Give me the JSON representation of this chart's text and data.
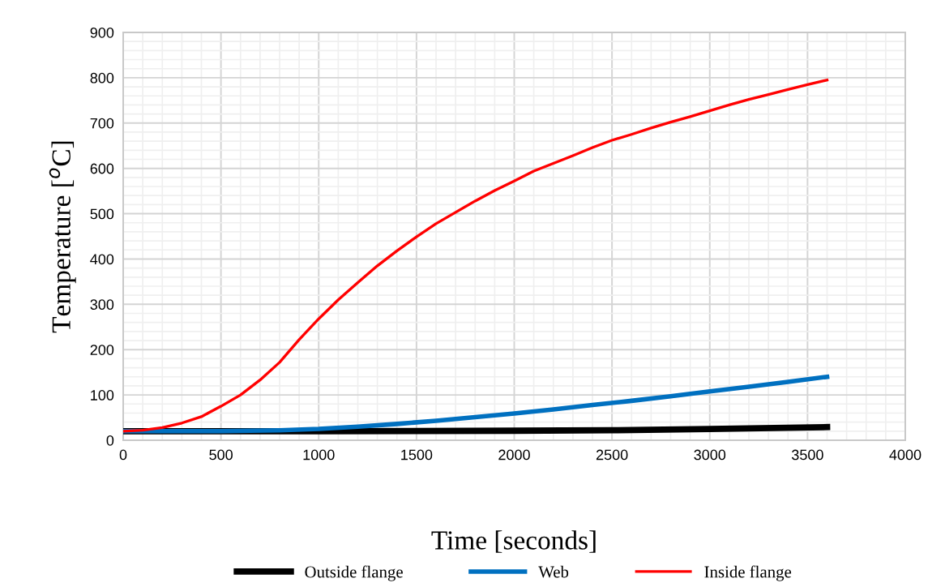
{
  "chart_data": {
    "type": "line",
    "xlabel": "Time [seconds]",
    "ylabel": "Temperature [$^{o}$C]",
    "xlim": [
      0,
      4000
    ],
    "xticks": [
      0,
      500,
      1000,
      1500,
      2000,
      2500,
      3000,
      3500,
      4000
    ],
    "ylim": [
      0,
      900
    ],
    "yticks": [
      0,
      100,
      200,
      300,
      400,
      500,
      600,
      700,
      800,
      900
    ],
    "grid": true,
    "legend": "bottom",
    "marker": "none",
    "line_style": "solid",
    "series": [
      {
        "name": "Outside flange",
        "color": "#000000",
        "x": [
          0,
          1000,
          2000,
          2500,
          3000,
          3600
        ],
        "values": [
          20,
          20,
          21,
          22,
          25,
          29
        ]
      },
      {
        "name": "Web",
        "color": "#0070c0",
        "x": [
          0,
          500,
          800,
          1000,
          1200,
          1400,
          1600,
          1800,
          2000,
          2200,
          2400,
          2600,
          2800,
          3000,
          3200,
          3400,
          3600
        ],
        "values": [
          20,
          20,
          22,
          25,
          30,
          36,
          43,
          51,
          59,
          68,
          78,
          87,
          97,
          108,
          118,
          129,
          140
        ]
      },
      {
        "name": "Inside flange",
        "color": "#ff0000",
        "x": [
          0,
          100,
          200,
          300,
          400,
          500,
          600,
          700,
          800,
          900,
          1000,
          1100,
          1200,
          1300,
          1400,
          1500,
          1600,
          1700,
          1800,
          1900,
          2000,
          2100,
          2200,
          2300,
          2400,
          2500,
          2600,
          2700,
          2800,
          2900,
          3000,
          3100,
          3200,
          3300,
          3400,
          3500,
          3600
        ],
        "values": [
          20,
          22,
          28,
          38,
          52,
          75,
          100,
          133,
          172,
          222,
          268,
          310,
          348,
          385,
          418,
          449,
          478,
          503,
          528,
          551,
          572,
          594,
          611,
          628,
          646,
          662,
          675,
          689,
          702,
          714,
          727,
          740,
          752,
          763,
          774,
          785,
          795
        ]
      }
    ]
  }
}
